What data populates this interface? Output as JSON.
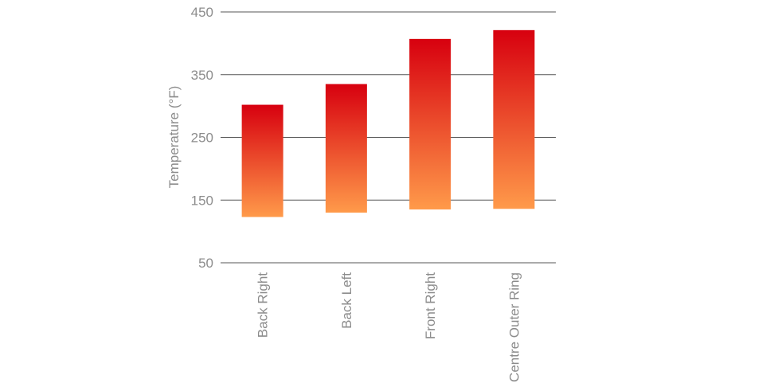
{
  "chart_data": {
    "type": "bar",
    "subtype": "floating-range",
    "ylabel": "Temperature (°F)",
    "xlabel": "",
    "ylim": [
      50,
      450
    ],
    "yticks": [
      450,
      350,
      250,
      150,
      50
    ],
    "grid": true,
    "categories": [
      "Back Right",
      "Back Left",
      "Front Right",
      "Centre Outer Ring"
    ],
    "series": [
      {
        "low": [
          123,
          130,
          135,
          136
        ],
        "high": [
          302,
          335,
          407,
          421
        ]
      }
    ],
    "colors": {
      "bar_top": "#d7000f",
      "bar_bottom": "#ff9a4a",
      "grid": "#555555",
      "text": "#8c8c8c"
    }
  }
}
